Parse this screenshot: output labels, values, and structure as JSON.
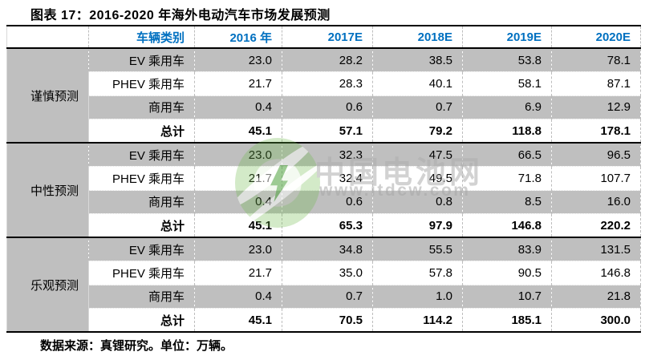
{
  "chart_data": {
    "type": "table",
    "title": "图表 17：2016-2020 年海外电动汽车市场发展预测",
    "columns": [
      "车辆类别",
      "2016 年",
      "2017E",
      "2018E",
      "2019E",
      "2020E"
    ],
    "row_groups": [
      {
        "label": "谨慎预测",
        "rows": [
          {
            "category": "EV 乘用车",
            "values": [
              "23.0",
              "28.2",
              "38.5",
              "53.8",
              "78.1"
            ],
            "total": false
          },
          {
            "category": "PHEV 乘用车",
            "values": [
              "21.7",
              "28.3",
              "40.1",
              "58.1",
              "87.1"
            ],
            "total": false
          },
          {
            "category": "商用车",
            "values": [
              "0.4",
              "0.6",
              "0.7",
              "6.9",
              "12.9"
            ],
            "total": false
          },
          {
            "category": "总计",
            "values": [
              "45.1",
              "57.1",
              "79.2",
              "118.8",
              "178.1"
            ],
            "total": true
          }
        ]
      },
      {
        "label": "中性预测",
        "rows": [
          {
            "category": "EV 乘用车",
            "values": [
              "23.0",
              "32.3",
              "47.5",
              "66.5",
              "96.5"
            ],
            "total": false
          },
          {
            "category": "PHEV 乘用车",
            "values": [
              "21.7",
              "32.4",
              "49.5",
              "71.8",
              "107.7"
            ],
            "total": false
          },
          {
            "category": "商用车",
            "values": [
              "0.4",
              "0.6",
              "0.8",
              "8.5",
              "16.0"
            ],
            "total": false
          },
          {
            "category": "总计",
            "values": [
              "45.1",
              "65.3",
              "97.9",
              "146.8",
              "220.2"
            ],
            "total": true
          }
        ]
      },
      {
        "label": "乐观预测",
        "rows": [
          {
            "category": "EV 乘用车",
            "values": [
              "23.0",
              "34.8",
              "55.5",
              "83.9",
              "131.5"
            ],
            "total": false
          },
          {
            "category": "PHEV 乘用车",
            "values": [
              "21.7",
              "35.0",
              "57.8",
              "90.5",
              "146.8"
            ],
            "total": false
          },
          {
            "category": "商用车",
            "values": [
              "0.4",
              "0.7",
              "1.0",
              "10.7",
              "21.8"
            ],
            "total": false
          },
          {
            "category": "总计",
            "values": [
              "45.1",
              "70.5",
              "114.2",
              "185.1",
              "300.0"
            ],
            "total": true
          }
        ]
      }
    ],
    "source_note": "数据来源：真锂研究。单位：万辆。"
  },
  "watermark": {
    "brand": "中国电池网",
    "url": "www.itdcw.com"
  },
  "colors": {
    "header_text_blue": "#0070C0",
    "stripe_gray": "#BFBFBF",
    "border_black": "#000000",
    "watermark_green": "#6EB94B",
    "watermark_gray": "#AEAEAE"
  }
}
